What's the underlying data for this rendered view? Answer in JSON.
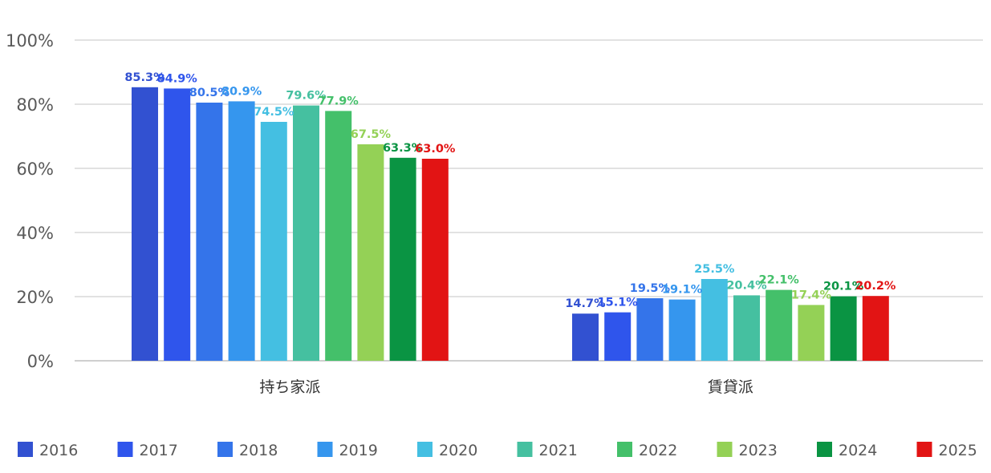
{
  "chart_data": {
    "type": "bar",
    "categories": [
      "持ち家派",
      "賃貸派"
    ],
    "series": [
      {
        "name": "2016",
        "color": "#3251d1",
        "values": [
          85.3,
          14.7
        ],
        "labels": [
          "85.3%",
          "14.7%"
        ]
      },
      {
        "name": "2017",
        "color": "#2f55ec",
        "values": [
          84.9,
          15.1
        ],
        "labels": [
          "84.9%",
          "15.1%"
        ]
      },
      {
        "name": "2018",
        "color": "#3474ea",
        "values": [
          80.5,
          19.5
        ],
        "labels": [
          "80.5%",
          "19.5%"
        ]
      },
      {
        "name": "2019",
        "color": "#3596ee",
        "values": [
          80.9,
          19.1
        ],
        "labels": [
          "80.9%",
          "19.1%"
        ]
      },
      {
        "name": "2020",
        "color": "#44bfe2",
        "values": [
          74.5,
          25.5
        ],
        "labels": [
          "74.5%",
          "25.5%"
        ]
      },
      {
        "name": "2021",
        "color": "#45c0a0",
        "values": [
          79.6,
          20.4
        ],
        "labels": [
          "79.6%",
          "20.4%"
        ]
      },
      {
        "name": "2022",
        "color": "#44c06a",
        "values": [
          77.9,
          22.1
        ],
        "labels": [
          "77.9%",
          "22.1%"
        ]
      },
      {
        "name": "2023",
        "color": "#94d156",
        "values": [
          67.5,
          17.4
        ],
        "labels": [
          "67.5%",
          "17.4%"
        ]
      },
      {
        "name": "2024",
        "color": "#0a9443",
        "values": [
          63.3,
          20.1
        ],
        "labels": [
          "63.3%",
          "20.1%"
        ]
      },
      {
        "name": "2025",
        "color": "#e21414",
        "values": [
          63.0,
          20.2
        ],
        "labels": [
          "63.0%",
          "20.2%"
        ]
      }
    ],
    "yticks": [
      "0%",
      "20%",
      "40%",
      "60%",
      "80%",
      "100%"
    ],
    "ylim": [
      0,
      100
    ],
    "grid": true,
    "legend": "bottom"
  }
}
